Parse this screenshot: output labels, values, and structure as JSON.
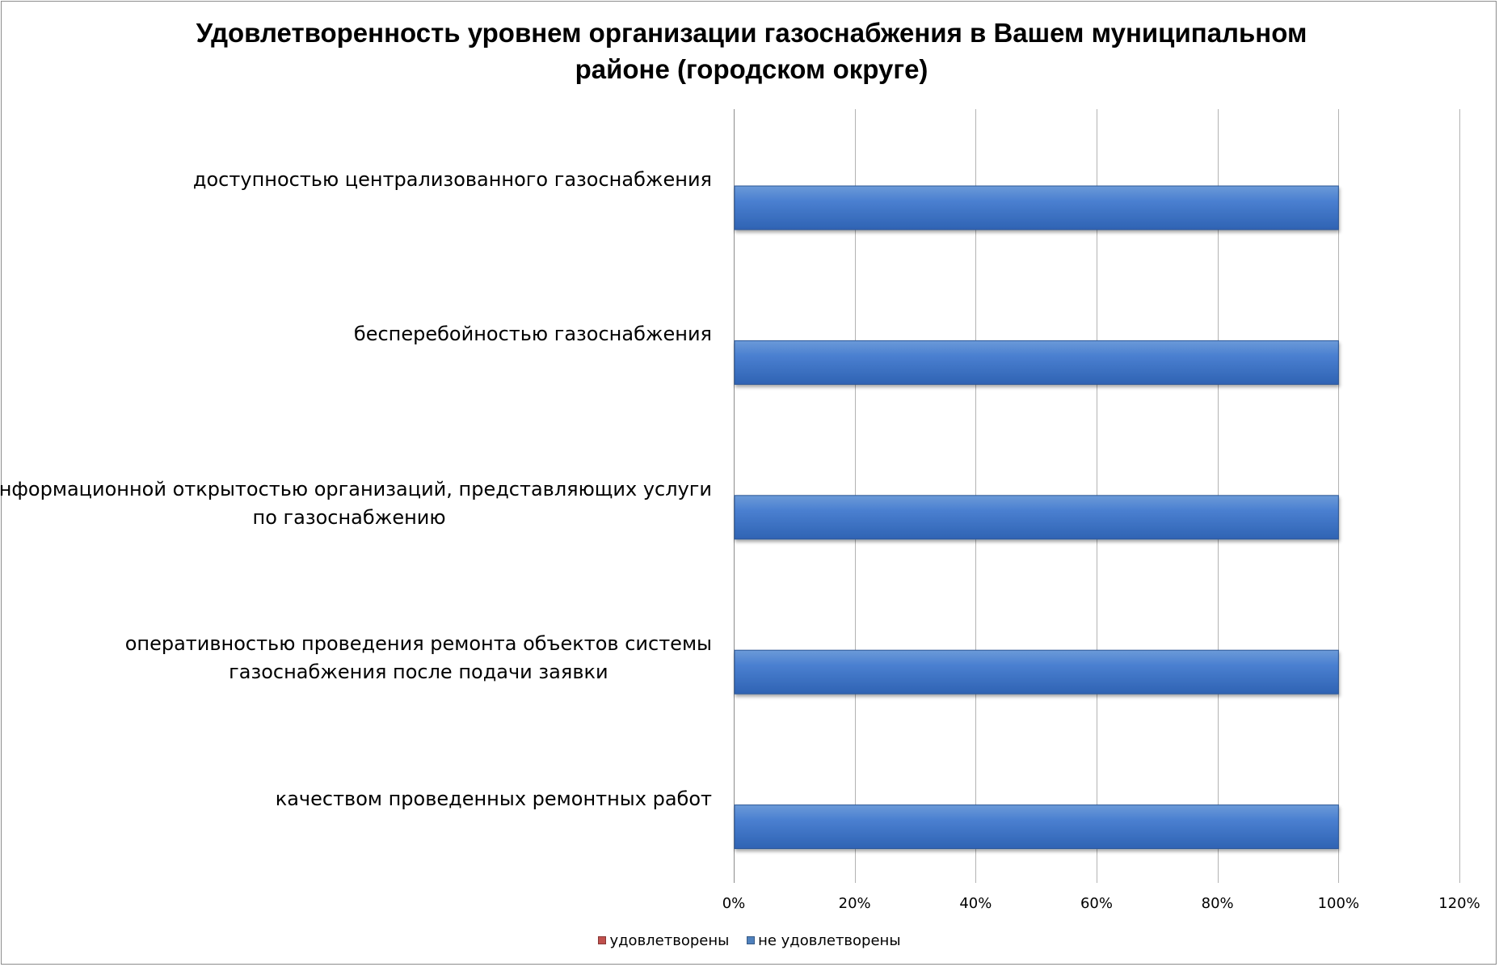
{
  "chart_data": {
    "type": "bar",
    "orientation": "horizontal",
    "title_lines": [
      "Удовлетворенность уровнем организации газоснабжения в Вашем муниципальном",
      "районе (городском округе)"
    ],
    "categories": [
      [
        "доступностью централизованного газоснабжения"
      ],
      [
        "бесперебойностью  газоснабжения"
      ],
      [
        "информационной открытостью организаций, представляющих услуги",
        "по газоснабжению"
      ],
      [
        "оперативностью проведения ремонта объектов системы",
        "газоснабжения после подачи заявки"
      ],
      [
        "качеством проведенных ремонтных работ"
      ]
    ],
    "series": [
      {
        "name": "удовлетворены",
        "color": "#c0504d",
        "values": [
          0,
          0,
          0,
          0,
          0
        ]
      },
      {
        "name": "не удовлетворены",
        "color": "#4f81bd",
        "values": [
          1,
          1,
          1,
          1,
          1
        ]
      }
    ],
    "x_ticks": [
      "0%",
      "20%",
      "40%",
      "60%",
      "80%",
      "100%",
      "120%"
    ],
    "xlim": [
      0,
      1.2
    ],
    "grid": true,
    "legend_position": "bottom"
  }
}
